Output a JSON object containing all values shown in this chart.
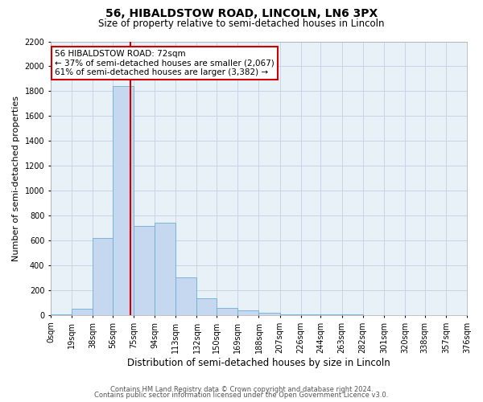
{
  "title": "56, HIBALDSTOW ROAD, LINCOLN, LN6 3PX",
  "subtitle": "Size of property relative to semi-detached houses in Lincoln",
  "xlabel": "Distribution of semi-detached houses by size in Lincoln",
  "ylabel": "Number of semi-detached properties",
  "footer_line1": "Contains HM Land Registry data © Crown copyright and database right 2024.",
  "footer_line2": "Contains public sector information licensed under the Open Government Licence v3.0.",
  "annotation_title": "56 HIBALDSTOW ROAD: 72sqm",
  "annotation_line1": "← 37% of semi-detached houses are smaller (2,067)",
  "annotation_line2": "61% of semi-detached houses are larger (3,382) →",
  "property_size": 72,
  "bins": [
    0,
    19,
    38,
    56,
    75,
    94,
    113,
    132,
    150,
    169,
    188,
    207,
    226,
    244,
    263,
    282,
    301,
    320,
    338,
    357,
    376
  ],
  "bin_labels": [
    "0sqm",
    "19sqm",
    "38sqm",
    "56sqm",
    "75sqm",
    "94sqm",
    "113sqm",
    "132sqm",
    "150sqm",
    "169sqm",
    "188sqm",
    "207sqm",
    "226sqm",
    "244sqm",
    "263sqm",
    "282sqm",
    "301sqm",
    "320sqm",
    "338sqm",
    "357sqm",
    "376sqm"
  ],
  "counts": [
    5,
    50,
    620,
    1840,
    720,
    740,
    305,
    135,
    60,
    38,
    22,
    8,
    8,
    5,
    3,
    0,
    0,
    0,
    0,
    0
  ],
  "bar_color": "#c5d8f0",
  "bar_edge_color": "#6baed6",
  "highlight_line_color": "#cc0000",
  "annotation_box_color": "#cc0000",
  "grid_color": "#c8d4e8",
  "background_color": "#e8f0f8",
  "ylim": [
    0,
    2200
  ],
  "yticks": [
    0,
    200,
    400,
    600,
    800,
    1000,
    1200,
    1400,
    1600,
    1800,
    2000,
    2200
  ],
  "title_fontsize": 10,
  "subtitle_fontsize": 8.5,
  "ylabel_fontsize": 8,
  "xlabel_fontsize": 8.5,
  "tick_fontsize": 7,
  "annotation_fontsize": 7.5,
  "footer_fontsize": 6
}
